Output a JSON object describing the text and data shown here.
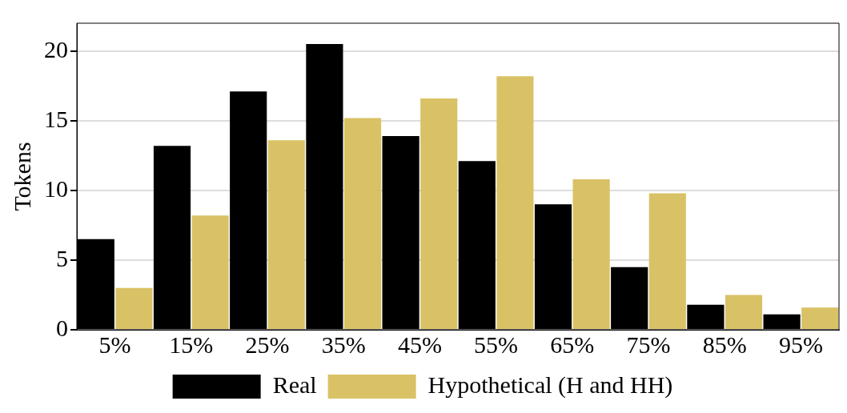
{
  "chart_data": {
    "type": "bar",
    "ylabel": "Tokens",
    "categories": [
      "5%",
      "15%",
      "25%",
      "35%",
      "45%",
      "55%",
      "65%",
      "75%",
      "85%",
      "95%"
    ],
    "series": [
      {
        "name": "Real",
        "color": "#000000",
        "values": [
          6.5,
          13.2,
          17.1,
          20.5,
          13.9,
          12.1,
          9.0,
          4.5,
          1.8,
          1.1
        ]
      },
      {
        "name": "Hypothetical (H and HH)",
        "color": "#d9c266",
        "values": [
          3.0,
          8.2,
          13.6,
          15.2,
          16.6,
          18.2,
          10.8,
          9.8,
          2.5,
          1.6
        ]
      }
    ],
    "ylim": [
      0,
      22
    ],
    "yticks": [
      0,
      5,
      10,
      15,
      20
    ],
    "grid": "y",
    "legend": "bottom"
  }
}
